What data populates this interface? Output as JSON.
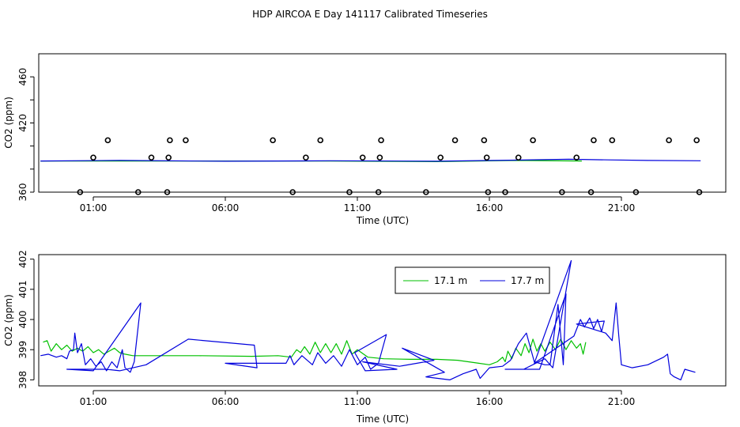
{
  "title": "HDP AIRCOA E  Day 141117  Calibrated Timeseries",
  "chart_data": [
    {
      "type": "scatter",
      "xlabel": "Time (UTC)",
      "ylabel": "CO2 (ppm)",
      "x_ticks": [
        "01:00",
        "06:00",
        "11:00",
        "16:00",
        "21:00"
      ],
      "y_ticks": [
        "360",
        "380",
        "400",
        "420",
        "440",
        "460"
      ],
      "y_tick_labels": [
        "360",
        "",
        "",
        "420",
        "",
        "460"
      ],
      "ylim": [
        360,
        480
      ],
      "xlim_hours": [
        -1,
        24
      ],
      "points": [
        [
          0.5,
          360
        ],
        [
          1.0,
          390
        ],
        [
          1.55,
          405
        ],
        [
          2.7,
          360
        ],
        [
          3.2,
          390
        ],
        [
          3.8,
          360
        ],
        [
          3.85,
          390
        ],
        [
          3.9,
          405
        ],
        [
          4.5,
          405
        ],
        [
          7.8,
          405
        ],
        [
          8.55,
          360
        ],
        [
          9.05,
          390
        ],
        [
          9.6,
          405
        ],
        [
          10.7,
          360
        ],
        [
          11.2,
          390
        ],
        [
          11.8,
          360
        ],
        [
          11.85,
          390
        ],
        [
          11.9,
          405
        ],
        [
          13.6,
          360
        ],
        [
          14.15,
          390
        ],
        [
          14.7,
          405
        ],
        [
          15.8,
          405
        ],
        [
          15.9,
          390
        ],
        [
          15.95,
          360
        ],
        [
          16.6,
          360
        ],
        [
          17.1,
          390
        ],
        [
          17.65,
          405
        ],
        [
          18.75,
          360
        ],
        [
          19.3,
          390
        ],
        [
          19.85,
          360
        ],
        [
          19.95,
          405
        ],
        [
          20.65,
          405
        ],
        [
          21.55,
          360
        ],
        [
          22.8,
          405
        ],
        [
          23.85,
          405
        ],
        [
          23.95,
          360
        ]
      ],
      "series": [
        {
          "name": "17.1 m",
          "color": "#00c000",
          "values": [
            [
              -1,
              387
            ],
            [
              6,
              387
            ],
            [
              10,
              387
            ],
            [
              14,
              386.5
            ],
            [
              17,
              387.5
            ],
            [
              19.5,
              387
            ]
          ]
        },
        {
          "name": "17.7 m",
          "color": "#0000dd",
          "values": [
            [
              -1,
              387
            ],
            [
              2,
              387.5
            ],
            [
              6,
              386.8
            ],
            [
              10,
              387.2
            ],
            [
              14,
              386.8
            ],
            [
              17,
              387.8
            ],
            [
              19,
              388.5
            ],
            [
              20.5,
              388
            ],
            [
              22,
              387.5
            ],
            [
              24,
              387.2
            ]
          ]
        }
      ]
    },
    {
      "type": "line",
      "xlabel": "Time (UTC)",
      "ylabel": "CO2 (ppm)",
      "x_ticks": [
        "01:00",
        "06:00",
        "11:00",
        "16:00",
        "21:00"
      ],
      "y_ticks": [
        "398",
        "399",
        "400",
        "401",
        "402"
      ],
      "ylim": [
        397.8,
        402.15
      ],
      "xlim_hours": [
        -1,
        24
      ],
      "legend": "top-right",
      "series": [
        {
          "name": "17.1 m",
          "color": "#00c000",
          "values": [
            [
              -0.9,
              399.25
            ],
            [
              -0.75,
              399.3
            ],
            [
              -0.6,
              398.95
            ],
            [
              -0.4,
              399.2
            ],
            [
              -0.2,
              399.0
            ],
            [
              0.0,
              399.15
            ],
            [
              0.2,
              398.95
            ],
            [
              0.4,
              399.05
            ],
            [
              0.6,
              398.95
            ],
            [
              0.8,
              399.1
            ],
            [
              1.0,
              398.9
            ],
            [
              1.2,
              399.0
            ],
            [
              1.4,
              398.85
            ],
            [
              1.6,
              398.95
            ],
            [
              1.8,
              399.05
            ],
            [
              2.0,
              398.9
            ],
            [
              2.2,
              398.85
            ],
            [
              2.5,
              398.8
            ],
            [
              3.0,
              398.8
            ],
            [
              5.0,
              398.8
            ],
            [
              7.0,
              398.78
            ],
            [
              8.0,
              398.8
            ],
            [
              8.5,
              398.75
            ],
            [
              8.7,
              399.0
            ],
            [
              8.85,
              398.9
            ],
            [
              9.0,
              399.1
            ],
            [
              9.2,
              398.85
            ],
            [
              9.4,
              399.25
            ],
            [
              9.6,
              398.9
            ],
            [
              9.8,
              399.2
            ],
            [
              10.0,
              398.9
            ],
            [
              10.2,
              399.2
            ],
            [
              10.4,
              398.85
            ],
            [
              10.6,
              399.3
            ],
            [
              10.8,
              398.85
            ],
            [
              11.0,
              399.0
            ],
            [
              11.4,
              398.75
            ],
            [
              12.0,
              398.7
            ],
            [
              13.0,
              398.68
            ],
            [
              14.0,
              398.68
            ],
            [
              14.8,
              398.65
            ],
            [
              15.2,
              398.6
            ],
            [
              15.6,
              398.55
            ],
            [
              16.0,
              398.5
            ],
            [
              16.3,
              398.6
            ],
            [
              16.5,
              398.75
            ],
            [
              16.6,
              398.6
            ],
            [
              16.7,
              398.95
            ],
            [
              16.85,
              398.7
            ],
            [
              17.0,
              399.05
            ],
            [
              17.2,
              398.8
            ],
            [
              17.35,
              399.2
            ],
            [
              17.5,
              398.9
            ],
            [
              17.65,
              399.35
            ],
            [
              17.8,
              398.95
            ],
            [
              17.95,
              399.2
            ],
            [
              18.1,
              398.95
            ],
            [
              18.3,
              399.25
            ],
            [
              18.5,
              399.0
            ],
            [
              18.7,
              399.35
            ],
            [
              18.9,
              399.0
            ],
            [
              19.1,
              399.3
            ],
            [
              19.3,
              399.05
            ],
            [
              19.45,
              399.2
            ],
            [
              19.55,
              398.85
            ],
            [
              19.65,
              399.25
            ]
          ]
        },
        {
          "name": "17.7 m",
          "color": "#0000dd",
          "values": [
            [
              -1.0,
              398.8
            ],
            [
              -0.7,
              398.85
            ],
            [
              -0.4,
              398.75
            ],
            [
              -0.2,
              398.8
            ],
            [
              0.0,
              398.7
            ],
            [
              0.1,
              398.95
            ],
            [
              0.25,
              399.0
            ],
            [
              0.3,
              399.55
            ],
            [
              0.4,
              398.9
            ],
            [
              0.55,
              399.2
            ],
            [
              0.7,
              398.5
            ],
            [
              0.9,
              398.7
            ],
            [
              1.1,
              398.45
            ],
            [
              1.3,
              398.6
            ],
            [
              1.5,
              398.3
            ],
            [
              1.7,
              398.6
            ],
            [
              1.9,
              398.4
            ],
            [
              2.1,
              399.0
            ],
            [
              2.2,
              398.4
            ],
            [
              2.4,
              398.25
            ],
            [
              2.55,
              398.6
            ],
            [
              2.8,
              400.55
            ],
            [
              1.0,
              398.3
            ],
            [
              0.0,
              398.35
            ],
            [
              1.5,
              398.35
            ],
            [
              2.0,
              398.3
            ],
            [
              3.0,
              398.5
            ],
            [
              4.6,
              399.35
            ],
            [
              7.1,
              399.15
            ],
            [
              7.2,
              398.4
            ],
            [
              6.0,
              398.55
            ],
            [
              8.0,
              398.55
            ],
            [
              8.3,
              398.55
            ],
            [
              8.45,
              398.8
            ],
            [
              8.6,
              398.5
            ],
            [
              8.9,
              398.8
            ],
            [
              9.3,
              398.5
            ],
            [
              9.5,
              398.9
            ],
            [
              9.8,
              398.55
            ],
            [
              10.1,
              398.8
            ],
            [
              10.4,
              398.45
            ],
            [
              10.7,
              399.0
            ],
            [
              11.0,
              398.5
            ],
            [
              11.3,
              398.75
            ],
            [
              11.5,
              398.35
            ],
            [
              11.8,
              398.55
            ],
            [
              12.1,
              399.5
            ],
            [
              10.9,
              398.9
            ],
            [
              11.3,
              398.3
            ],
            [
              12.5,
              398.35
            ],
            [
              11.2,
              398.6
            ],
            [
              12.6,
              398.45
            ],
            [
              13.9,
              398.65
            ],
            [
              12.7,
              399.05
            ],
            [
              14.3,
              398.25
            ],
            [
              13.6,
              398.1
            ],
            [
              14.5,
              398.0
            ],
            [
              15.0,
              398.2
            ],
            [
              15.5,
              398.35
            ],
            [
              15.65,
              398.05
            ],
            [
              16.0,
              398.4
            ],
            [
              16.5,
              398.45
            ],
            [
              16.8,
              398.65
            ],
            [
              17.1,
              399.2
            ],
            [
              17.4,
              399.55
            ],
            [
              17.7,
              398.6
            ],
            [
              18.1,
              398.5
            ],
            [
              18.3,
              398.5
            ],
            [
              18.6,
              400.5
            ],
            [
              18.8,
              398.5
            ],
            [
              18.9,
              400.85
            ],
            [
              17.9,
              398.35
            ],
            [
              16.6,
              398.35
            ],
            [
              17.3,
              398.35
            ],
            [
              18.1,
              398.7
            ],
            [
              18.4,
              398.4
            ],
            [
              19.1,
              401.95
            ],
            [
              17.7,
              398.55
            ],
            [
              19.2,
              399.45
            ],
            [
              19.45,
              400.0
            ],
            [
              19.6,
              399.75
            ],
            [
              19.8,
              400.05
            ],
            [
              19.95,
              399.7
            ],
            [
              20.1,
              400.0
            ],
            [
              20.25,
              399.6
            ],
            [
              20.35,
              399.95
            ],
            [
              19.3,
              399.85
            ],
            [
              20.4,
              399.55
            ],
            [
              20.65,
              399.3
            ],
            [
              20.8,
              400.55
            ],
            [
              20.9,
              399.45
            ],
            [
              21.0,
              398.5
            ],
            [
              21.4,
              398.4
            ],
            [
              22.0,
              398.5
            ],
            [
              22.6,
              398.75
            ],
            [
              22.75,
              398.85
            ],
            [
              22.85,
              398.2
            ],
            [
              23.0,
              398.1
            ],
            [
              23.25,
              398.0
            ],
            [
              23.4,
              398.35
            ],
            [
              23.8,
              398.25
            ]
          ]
        }
      ]
    }
  ]
}
